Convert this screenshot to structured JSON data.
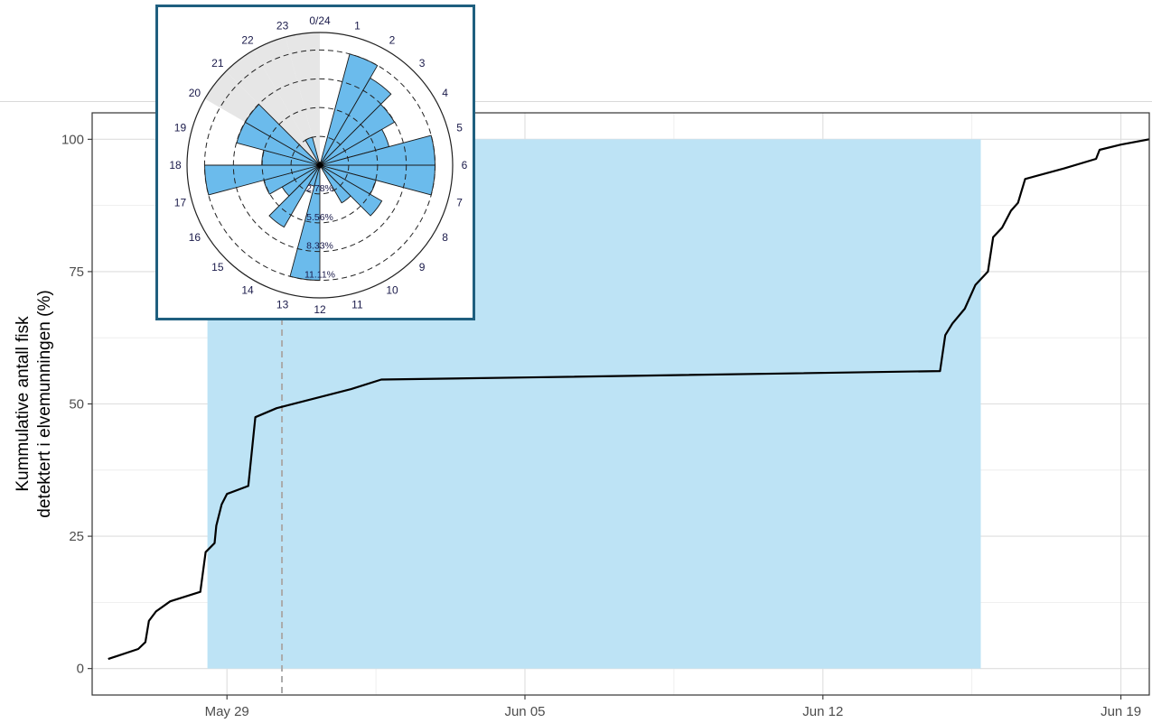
{
  "chart_data": [
    {
      "type": "line",
      "title": "",
      "xlabel": "",
      "ylabel": "Kummulative antall fisk detektert i elvemunningen (%)",
      "ylabel_lines": [
        "Kummulative antall fisk",
        "detektert i elvemunningen (%)"
      ],
      "x_ticks": [
        "May 29",
        "Jun 05",
        "Jun 12",
        "Jun 19"
      ],
      "y_ticks": [
        "0",
        "25",
        "50",
        "75",
        "100"
      ],
      "x_range": [
        "2024-05-25T20:00",
        "2024-06-19T16:00"
      ],
      "ylim": [
        -5,
        105
      ],
      "grid": true,
      "shaded_period": {
        "start": "2024-05-28T13:00",
        "end": "2024-06-15T17:00",
        "color": "#bde3f5"
      },
      "marker_line": {
        "x": "2024-05-30T07:00",
        "style": "dashed",
        "color": "#aaaaaa"
      },
      "line_color": "#000000",
      "series": [
        {
          "points": [
            [
              "2024-05-26T05:00",
              1.8
            ],
            [
              "2024-05-26T22:00",
              3.7
            ],
            [
              "2024-05-27T02:00",
              5.0
            ],
            [
              "2024-05-27T04:00",
              9.0
            ],
            [
              "2024-05-27T08:00",
              10.8
            ],
            [
              "2024-05-27T16:00",
              12.7
            ],
            [
              "2024-05-28T09:00",
              14.5
            ],
            [
              "2024-05-28T12:00",
              22.0
            ],
            [
              "2024-05-28T17:00",
              23.7
            ],
            [
              "2024-05-28T18:00",
              27.0
            ],
            [
              "2024-05-28T21:00",
              31.0
            ],
            [
              "2024-05-29T00:00",
              33.0
            ],
            [
              "2024-05-29T12:00",
              34.5
            ],
            [
              "2024-05-29T16:00",
              47.5
            ],
            [
              "2024-05-30T04:00",
              49.2
            ],
            [
              "2024-05-31T22:00",
              52.8
            ],
            [
              "2024-06-01T15:00",
              54.6
            ],
            [
              "2024-06-05T00:00",
              55.0
            ],
            [
              "2024-06-14T18:00",
              56.2
            ],
            [
              "2024-06-14T21:00",
              63.0
            ],
            [
              "2024-06-15T01:00",
              65.2
            ],
            [
              "2024-06-15T08:00",
              68.0
            ],
            [
              "2024-06-15T14:00",
              72.5
            ],
            [
              "2024-06-15T21:00",
              75.0
            ],
            [
              "2024-06-16T00:00",
              81.5
            ],
            [
              "2024-06-16T05:00",
              83.3
            ],
            [
              "2024-06-16T10:00",
              86.5
            ],
            [
              "2024-06-16T14:00",
              88.0
            ],
            [
              "2024-06-16T18:00",
              92.5
            ],
            [
              "2024-06-17T16:00",
              94.5
            ],
            [
              "2024-06-18T10:00",
              96.3
            ],
            [
              "2024-06-18T12:00",
              98.0
            ],
            [
              "2024-06-19T00:00",
              99.0
            ],
            [
              "2024-06-19T16:00",
              100.0
            ]
          ]
        }
      ]
    },
    {
      "type": "bar",
      "subtype": "polar",
      "title": "",
      "categories": [
        "0/24",
        "1",
        "2",
        "3",
        "4",
        "5",
        "6",
        "7",
        "8",
        "9",
        "10",
        "11",
        "12",
        "13",
        "14",
        "15",
        "16",
        "17",
        "18",
        "19",
        "20",
        "21",
        "22",
        "23"
      ],
      "values": [
        0,
        11.1,
        9.7,
        8.3,
        6.9,
        11.1,
        11.1,
        5.6,
        6.9,
        4.2,
        0,
        0,
        11.1,
        2.1,
        6.9,
        4.2,
        5.6,
        11.1,
        5.6,
        8.3,
        8.3,
        0,
        2.8,
        0
      ],
      "rings": [
        "2.78%",
        "5.56%",
        "8.33%",
        "11.11%"
      ],
      "ring_values": [
        2.78,
        5.56,
        8.33,
        11.11
      ],
      "rmax": 12.8,
      "night_shading": {
        "hours": [
          "21",
          "22",
          "23",
          "0/24"
        ],
        "color": "#e6e6e6"
      },
      "bar_color": "#6bbbec"
    }
  ]
}
